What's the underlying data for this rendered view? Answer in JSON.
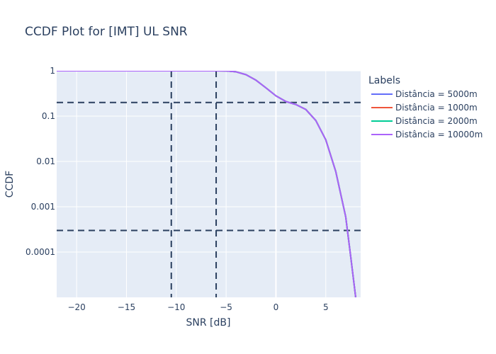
{
  "chart_data": {
    "type": "line",
    "title": "CCDF Plot for [IMT] UL SNR",
    "xlabel": "SNR [dB]",
    "ylabel": "CCDF",
    "xlim": [
      -22,
      8.5
    ],
    "ylim_log10": [
      -5,
      0
    ],
    "y_scale": "log",
    "grid": true,
    "legend": {
      "title": "Labels",
      "placement": "right"
    },
    "x_ticks": [
      -20,
      -15,
      -10,
      -5,
      0,
      5
    ],
    "x_tick_labels": [
      "−20",
      "−15",
      "−10",
      "−5",
      "0",
      "5"
    ],
    "y_ticks": [
      1,
      0.1,
      0.01,
      0.001,
      0.0001
    ],
    "y_tick_labels": [
      "1",
      "0.1",
      "0.01",
      "0.001",
      "0.0001"
    ],
    "reference_lines": {
      "vertical_x": [
        -10.5,
        -6
      ],
      "horizontal_y": [
        0.2,
        0.0003
      ],
      "color": "#2a3f5f",
      "dash": "dashed"
    },
    "series": [
      {
        "name": "Distância = 5000m",
        "color": "#636efa",
        "x": [
          -22,
          -6,
          -5,
          -4,
          -3,
          -2,
          -1,
          0,
          1,
          2,
          3,
          4,
          5,
          6,
          7,
          7.5,
          8
        ],
        "y": [
          1,
          1,
          0.995,
          0.95,
          0.82,
          0.62,
          0.42,
          0.28,
          0.21,
          0.18,
          0.14,
          0.08,
          0.03,
          0.006,
          0.0006,
          8e-05,
          1e-05
        ]
      },
      {
        "name": "Distância = 1000m",
        "color": "#ef553b",
        "x": [
          -22,
          -6,
          -5,
          -4,
          -3,
          -2,
          -1,
          0,
          1,
          2,
          3,
          4,
          5,
          6,
          7,
          7.5,
          8
        ],
        "y": [
          1,
          1,
          0.995,
          0.95,
          0.82,
          0.62,
          0.42,
          0.28,
          0.21,
          0.18,
          0.14,
          0.08,
          0.03,
          0.006,
          0.0006,
          8e-05,
          1e-05
        ]
      },
      {
        "name": "Distância = 2000m",
        "color": "#00cc96",
        "x": [
          -22,
          -6,
          -5,
          -4,
          -3,
          -2,
          -1,
          0,
          1,
          2,
          3,
          4,
          5,
          6,
          7,
          7.5,
          8
        ],
        "y": [
          1,
          1,
          0.995,
          0.95,
          0.82,
          0.62,
          0.42,
          0.28,
          0.21,
          0.18,
          0.14,
          0.08,
          0.03,
          0.006,
          0.0006,
          8e-05,
          1e-05
        ]
      },
      {
        "name": "Distância = 10000m",
        "color": "#ab63fa",
        "x": [
          -22,
          -6,
          -5,
          -4,
          -3,
          -2,
          -1,
          0,
          1,
          2,
          3,
          4,
          5,
          6,
          7,
          7.5,
          8
        ],
        "y": [
          1,
          1,
          0.995,
          0.95,
          0.82,
          0.62,
          0.42,
          0.28,
          0.21,
          0.18,
          0.14,
          0.08,
          0.03,
          0.006,
          0.0006,
          8e-05,
          1e-05
        ]
      }
    ]
  }
}
